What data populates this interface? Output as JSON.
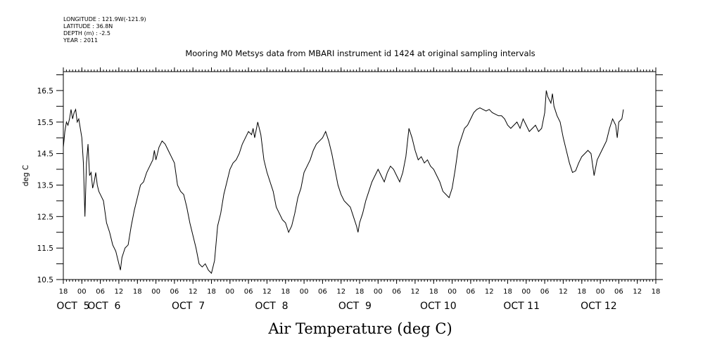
{
  "metadata": {
    "longitude": "LONGITUDE : 121.9W(-121.9)",
    "latitude": "LATITUDE : 36.8N",
    "depth": "DEPTH (m) : -2.5",
    "year": "YEAR : 2011"
  },
  "chart_data": {
    "type": "line",
    "title": "Mooring M0 Metsys data from MBARI instrument id 1424 at original sampling intervals",
    "xlabel": "Air Temperature (deg C)",
    "ylabel": "deg C",
    "ylim": [
      10.5,
      17.1
    ],
    "yticks": [
      10.5,
      11.5,
      12.5,
      13.5,
      14.5,
      15.5,
      16.5
    ],
    "ytick_labels": [
      "10.5",
      "11.5",
      "12.5",
      "13.5",
      "14.5",
      "15.5",
      "16.5"
    ],
    "x_unit": "hours since 2011-10-04 18:00",
    "xlim": [
      0,
      192
    ],
    "hour_ticks": [
      {
        "x": 0,
        "label": "18"
      },
      {
        "x": 6,
        "label": "00"
      },
      {
        "x": 12,
        "label": "06"
      },
      {
        "x": 18,
        "label": "12"
      },
      {
        "x": 24,
        "label": "18"
      },
      {
        "x": 30,
        "label": "00"
      },
      {
        "x": 36,
        "label": "06"
      },
      {
        "x": 42,
        "label": "12"
      },
      {
        "x": 48,
        "label": "18"
      },
      {
        "x": 54,
        "label": "00"
      },
      {
        "x": 60,
        "label": "06"
      },
      {
        "x": 66,
        "label": "12"
      },
      {
        "x": 72,
        "label": "18"
      },
      {
        "x": 78,
        "label": "00"
      },
      {
        "x": 84,
        "label": "06"
      },
      {
        "x": 90,
        "label": "12"
      },
      {
        "x": 96,
        "label": "18"
      },
      {
        "x": 102,
        "label": "00"
      },
      {
        "x": 108,
        "label": "06"
      },
      {
        "x": 114,
        "label": "12"
      },
      {
        "x": 120,
        "label": "18"
      },
      {
        "x": 126,
        "label": "00"
      },
      {
        "x": 132,
        "label": "06"
      },
      {
        "x": 138,
        "label": "12"
      },
      {
        "x": 144,
        "label": "18"
      },
      {
        "x": 150,
        "label": "00"
      },
      {
        "x": 156,
        "label": "06"
      },
      {
        "x": 162,
        "label": "12"
      },
      {
        "x": 168,
        "label": "18"
      },
      {
        "x": 174,
        "label": "00"
      },
      {
        "x": 180,
        "label": "06"
      },
      {
        "x": 186,
        "label": "12"
      },
      {
        "x": 192,
        "label": "18"
      }
    ],
    "day_labels": [
      {
        "x": 3.2,
        "label": "OCT  5"
      },
      {
        "x": 13.2,
        "label": "OCT  6"
      },
      {
        "x": 40.5,
        "label": "OCT  7"
      },
      {
        "x": 67.5,
        "label": "OCT  8"
      },
      {
        "x": 94.5,
        "label": "OCT  9"
      },
      {
        "x": 121.5,
        "label": "OCT 10"
      },
      {
        "x": 148.5,
        "label": "OCT 11"
      },
      {
        "x": 173.5,
        "label": "OCT 12"
      }
    ],
    "series": [
      {
        "points": [
          [
            0,
            14.7
          ],
          [
            0.5,
            15.2
          ],
          [
            1,
            15.5
          ],
          [
            1.5,
            15.4
          ],
          [
            2,
            15.6
          ],
          [
            2.5,
            15.9
          ],
          [
            3,
            15.6
          ],
          [
            3.5,
            15.8
          ],
          [
            4,
            15.9
          ],
          [
            4.5,
            15.5
          ],
          [
            5,
            15.6
          ],
          [
            5.5,
            15.3
          ],
          [
            6,
            15.0
          ],
          [
            6.5,
            14.2
          ],
          [
            7,
            12.5
          ],
          [
            7.5,
            14.2
          ],
          [
            8,
            14.8
          ],
          [
            8.5,
            13.8
          ],
          [
            9,
            13.9
          ],
          [
            9.5,
            13.4
          ],
          [
            10,
            13.6
          ],
          [
            10.5,
            13.9
          ],
          [
            11,
            13.5
          ],
          [
            11.5,
            13.3
          ],
          [
            12,
            13.2
          ],
          [
            13,
            13.0
          ],
          [
            14,
            12.3
          ],
          [
            15,
            12.0
          ],
          [
            16,
            11.6
          ],
          [
            17,
            11.4
          ],
          [
            18,
            11.0
          ],
          [
            18.5,
            10.8
          ],
          [
            19,
            11.2
          ],
          [
            20,
            11.5
          ],
          [
            21,
            11.6
          ],
          [
            22,
            12.2
          ],
          [
            23,
            12.7
          ],
          [
            24,
            13.1
          ],
          [
            25,
            13.5
          ],
          [
            26,
            13.6
          ],
          [
            27,
            13.9
          ],
          [
            28,
            14.1
          ],
          [
            29,
            14.3
          ],
          [
            29.5,
            14.6
          ],
          [
            30,
            14.3
          ],
          [
            31,
            14.7
          ],
          [
            32,
            14.9
          ],
          [
            33,
            14.8
          ],
          [
            34,
            14.6
          ],
          [
            35,
            14.4
          ],
          [
            36,
            14.2
          ],
          [
            37,
            13.5
          ],
          [
            38,
            13.3
          ],
          [
            39,
            13.2
          ],
          [
            40,
            12.8
          ],
          [
            41,
            12.3
          ],
          [
            42,
            11.9
          ],
          [
            43,
            11.5
          ],
          [
            44,
            11.0
          ],
          [
            45,
            10.9
          ],
          [
            46,
            11.0
          ],
          [
            47,
            10.8
          ],
          [
            48,
            10.7
          ],
          [
            49,
            11.1
          ],
          [
            50,
            12.2
          ],
          [
            51,
            12.6
          ],
          [
            52,
            13.2
          ],
          [
            53,
            13.6
          ],
          [
            54,
            14.0
          ],
          [
            55,
            14.2
          ],
          [
            56,
            14.3
          ],
          [
            57,
            14.5
          ],
          [
            58,
            14.8
          ],
          [
            59,
            15.0
          ],
          [
            60,
            15.2
          ],
          [
            61,
            15.1
          ],
          [
            61.5,
            15.3
          ],
          [
            62,
            15.0
          ],
          [
            63,
            15.5
          ],
          [
            64,
            15.1
          ],
          [
            65,
            14.3
          ],
          [
            66,
            13.9
          ],
          [
            67,
            13.6
          ],
          [
            68,
            13.3
          ],
          [
            69,
            12.8
          ],
          [
            70,
            12.6
          ],
          [
            71,
            12.4
          ],
          [
            72,
            12.3
          ],
          [
            73,
            12.0
          ],
          [
            74,
            12.2
          ],
          [
            75,
            12.6
          ],
          [
            76,
            13.1
          ],
          [
            77,
            13.4
          ],
          [
            78,
            13.9
          ],
          [
            79,
            14.1
          ],
          [
            80,
            14.3
          ],
          [
            81,
            14.6
          ],
          [
            82,
            14.8
          ],
          [
            83,
            14.9
          ],
          [
            84,
            15.0
          ],
          [
            85,
            15.2
          ],
          [
            86,
            14.9
          ],
          [
            87,
            14.5
          ],
          [
            88,
            14.0
          ],
          [
            89,
            13.5
          ],
          [
            90,
            13.2
          ],
          [
            91,
            13.0
          ],
          [
            92,
            12.9
          ],
          [
            93,
            12.8
          ],
          [
            94,
            12.5
          ],
          [
            95,
            12.2
          ],
          [
            95.5,
            12.0
          ],
          [
            96,
            12.3
          ],
          [
            97,
            12.6
          ],
          [
            98,
            13.0
          ],
          [
            99,
            13.3
          ],
          [
            100,
            13.6
          ],
          [
            101,
            13.8
          ],
          [
            102,
            14.0
          ],
          [
            103,
            13.8
          ],
          [
            104,
            13.6
          ],
          [
            105,
            13.9
          ],
          [
            106,
            14.1
          ],
          [
            107,
            14.0
          ],
          [
            108,
            13.8
          ],
          [
            109,
            13.6
          ],
          [
            110,
            13.9
          ],
          [
            111,
            14.4
          ],
          [
            112,
            15.3
          ],
          [
            113,
            15.0
          ],
          [
            114,
            14.6
          ],
          [
            115,
            14.3
          ],
          [
            116,
            14.4
          ],
          [
            117,
            14.2
          ],
          [
            118,
            14.3
          ],
          [
            119,
            14.1
          ],
          [
            120,
            14.0
          ],
          [
            121,
            13.8
          ],
          [
            122,
            13.6
          ],
          [
            123,
            13.3
          ],
          [
            124,
            13.2
          ],
          [
            125,
            13.1
          ],
          [
            126,
            13.4
          ],
          [
            127,
            14.0
          ],
          [
            128,
            14.7
          ],
          [
            129,
            15.0
          ],
          [
            130,
            15.3
          ],
          [
            131,
            15.4
          ],
          [
            132,
            15.6
          ],
          [
            133,
            15.8
          ],
          [
            134,
            15.9
          ],
          [
            135,
            15.95
          ],
          [
            136,
            15.9
          ],
          [
            137,
            15.85
          ],
          [
            138,
            15.9
          ],
          [
            139,
            15.8
          ],
          [
            140,
            15.75
          ],
          [
            141,
            15.7
          ],
          [
            142,
            15.7
          ],
          [
            143,
            15.6
          ],
          [
            144,
            15.4
          ],
          [
            145,
            15.3
          ],
          [
            146,
            15.4
          ],
          [
            147,
            15.5
          ],
          [
            148,
            15.3
          ],
          [
            149,
            15.6
          ],
          [
            150,
            15.4
          ],
          [
            151,
            15.2
          ],
          [
            152,
            15.3
          ],
          [
            153,
            15.4
          ],
          [
            154,
            15.2
          ],
          [
            155,
            15.3
          ],
          [
            156,
            15.8
          ],
          [
            156.5,
            16.5
          ],
          [
            157,
            16.3
          ],
          [
            158,
            16.1
          ],
          [
            158.5,
            16.4
          ],
          [
            159,
            16.0
          ],
          [
            160,
            15.7
          ],
          [
            161,
            15.5
          ],
          [
            162,
            15.0
          ],
          [
            163,
            14.6
          ],
          [
            164,
            14.2
          ],
          [
            165,
            13.9
          ],
          [
            166,
            13.95
          ],
          [
            167,
            14.2
          ],
          [
            168,
            14.4
          ],
          [
            169,
            14.5
          ],
          [
            170,
            14.6
          ],
          [
            171,
            14.5
          ],
          [
            172,
            13.8
          ],
          [
            173,
            14.3
          ],
          [
            174,
            14.5
          ],
          [
            175,
            14.7
          ],
          [
            176,
            14.9
          ],
          [
            177,
            15.3
          ],
          [
            178,
            15.6
          ],
          [
            179,
            15.4
          ],
          [
            179.5,
            15.0
          ],
          [
            180,
            15.5
          ],
          [
            181,
            15.6
          ],
          [
            181.5,
            15.9
          ]
        ]
      }
    ]
  }
}
